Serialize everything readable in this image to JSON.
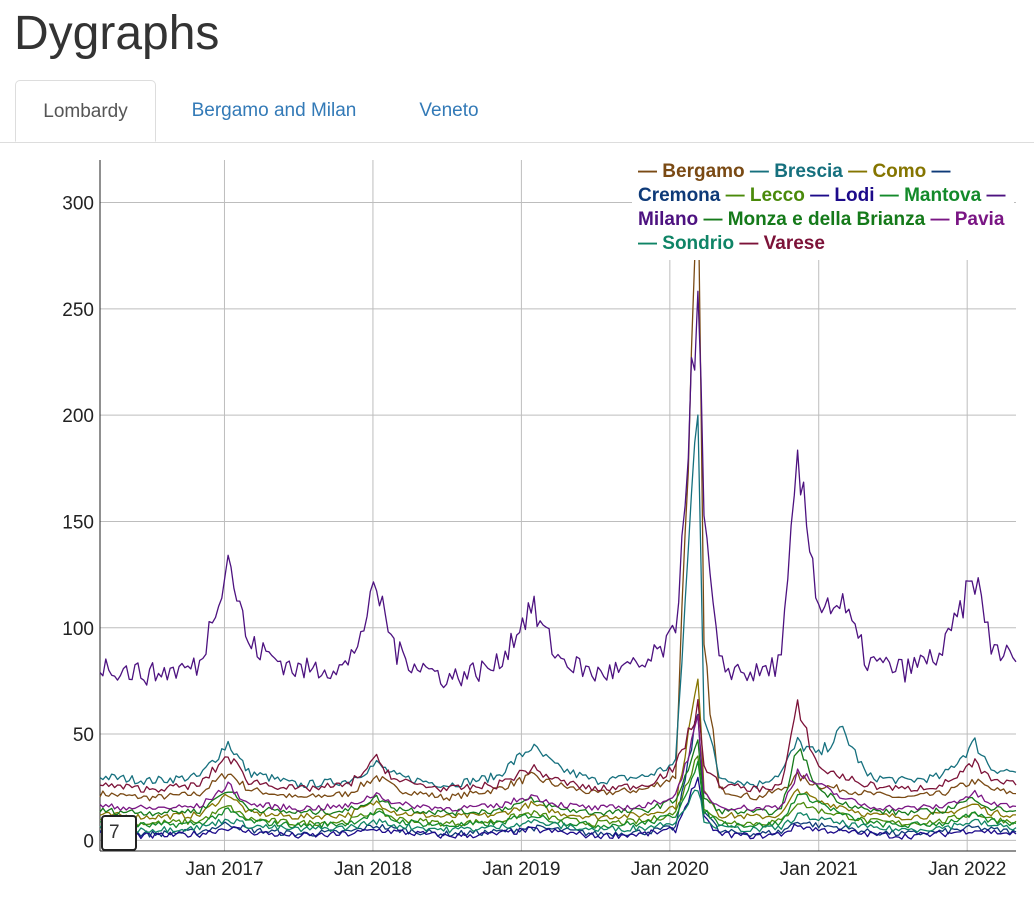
{
  "page": {
    "title": "Dygraphs"
  },
  "tabs": [
    {
      "label": "Lombardy",
      "active": true
    },
    {
      "label": "Bergamo and Milan",
      "active": false
    },
    {
      "label": "Veneto",
      "active": false
    }
  ],
  "roller": {
    "value": "7"
  },
  "chart_data": {
    "type": "line",
    "title": "",
    "xlabel": "",
    "ylabel": "",
    "x_ticks": [
      "Jan 2017",
      "Jan 2018",
      "Jan 2019",
      "Jan 2020",
      "Jan 2021",
      "Jan 2022"
    ],
    "y_ticks": [
      0,
      50,
      100,
      150,
      200,
      250,
      300
    ],
    "xlim": [
      "2016-03-01",
      "2022-05-01"
    ],
    "ylim": [
      -5,
      320
    ],
    "grid": true,
    "legend_position": "top-right",
    "x": [
      "2016-03-01",
      "2016-07-01",
      "2016-11-01",
      "2017-01-10",
      "2017-03-01",
      "2017-07-01",
      "2017-11-01",
      "2018-01-10",
      "2018-03-01",
      "2018-07-01",
      "2018-11-01",
      "2019-01-25",
      "2019-04-01",
      "2019-07-01",
      "2019-11-01",
      "2020-01-15",
      "2020-03-10",
      "2020-03-25",
      "2020-05-01",
      "2020-08-01",
      "2020-10-01",
      "2020-11-10",
      "2021-01-01",
      "2021-03-01",
      "2021-05-01",
      "2021-08-01",
      "2021-11-01",
      "2022-01-20",
      "2022-03-01",
      "2022-05-01"
    ],
    "series": [
      {
        "name": "Bergamo",
        "color": "#7a4a14",
        "values": [
          22,
          20,
          22,
          32,
          24,
          20,
          22,
          30,
          24,
          20,
          24,
          30,
          26,
          22,
          24,
          30,
          300,
          90,
          24,
          20,
          24,
          30,
          26,
          24,
          22,
          20,
          22,
          28,
          24,
          22
        ]
      },
      {
        "name": "Brescia",
        "color": "#16707e",
        "values": [
          30,
          28,
          30,
          46,
          32,
          26,
          28,
          36,
          30,
          26,
          30,
          44,
          34,
          28,
          30,
          36,
          210,
          60,
          30,
          26,
          32,
          46,
          40,
          52,
          30,
          28,
          30,
          46,
          34,
          32
        ]
      },
      {
        "name": "Como",
        "color": "#857500",
        "values": [
          12,
          11,
          12,
          22,
          13,
          11,
          12,
          18,
          13,
          11,
          12,
          17,
          13,
          11,
          12,
          16,
          75,
          25,
          12,
          11,
          12,
          24,
          18,
          16,
          12,
          11,
          12,
          17,
          13,
          12
        ]
      },
      {
        "name": "Cremona",
        "color": "#0e3a78",
        "values": [
          4,
          3,
          4,
          8,
          5,
          3,
          4,
          7,
          5,
          3,
          4,
          6,
          5,
          3,
          4,
          6,
          60,
          15,
          4,
          3,
          4,
          9,
          7,
          6,
          4,
          3,
          4,
          6,
          5,
          4
        ]
      },
      {
        "name": "Lecco",
        "color": "#4a8a0a",
        "values": [
          9,
          8,
          9,
          16,
          10,
          8,
          9,
          14,
          10,
          8,
          9,
          13,
          10,
          8,
          9,
          13,
          40,
          16,
          9,
          8,
          9,
          18,
          14,
          12,
          9,
          8,
          9,
          13,
          10,
          9
        ]
      },
      {
        "name": "Lodi",
        "color": "#1c0a8a",
        "values": [
          3,
          2,
          3,
          6,
          4,
          2,
          3,
          5,
          4,
          2,
          3,
          5,
          4,
          2,
          3,
          5,
          30,
          10,
          3,
          2,
          3,
          7,
          5,
          4,
          3,
          2,
          3,
          5,
          4,
          3
        ]
      },
      {
        "name": "Mantova",
        "color": "#138a2a",
        "values": [
          8,
          7,
          8,
          14,
          9,
          7,
          8,
          13,
          9,
          7,
          8,
          12,
          9,
          7,
          8,
          12,
          35,
          14,
          8,
          7,
          8,
          22,
          18,
          12,
          8,
          7,
          8,
          12,
          9,
          8
        ]
      },
      {
        "name": "Milano",
        "color": "#4d1280",
        "values": [
          82,
          78,
          82,
          134,
          92,
          80,
          82,
          118,
          88,
          76,
          82,
          110,
          86,
          78,
          82,
          96,
          260,
          150,
          82,
          78,
          84,
          176,
          112,
          110,
          84,
          80,
          88,
          124,
          92,
          84
        ]
      },
      {
        "name": "Monza e della Brianza",
        "color": "#157a1a",
        "values": [
          14,
          13,
          14,
          24,
          15,
          13,
          14,
          20,
          15,
          13,
          14,
          19,
          15,
          13,
          14,
          19,
          45,
          20,
          14,
          13,
          14,
          44,
          24,
          18,
          14,
          13,
          14,
          20,
          15,
          14
        ]
      },
      {
        "name": "Pavia",
        "color": "#7a1684",
        "values": [
          16,
          15,
          16,
          26,
          17,
          15,
          16,
          22,
          17,
          15,
          16,
          21,
          17,
          15,
          16,
          21,
          55,
          22,
          16,
          15,
          16,
          32,
          26,
          20,
          16,
          15,
          16,
          22,
          17,
          16
        ]
      },
      {
        "name": "Sondrio",
        "color": "#0f8466",
        "values": [
          6,
          5,
          6,
          10,
          7,
          5,
          6,
          9,
          7,
          5,
          6,
          9,
          7,
          5,
          6,
          9,
          25,
          10,
          6,
          5,
          6,
          12,
          10,
          8,
          6,
          5,
          6,
          9,
          7,
          6
        ]
      },
      {
        "name": "Varese",
        "color": "#7c1238",
        "values": [
          26,
          24,
          26,
          40,
          28,
          24,
          26,
          38,
          28,
          24,
          26,
          34,
          28,
          24,
          26,
          34,
          62,
          36,
          26,
          24,
          26,
          62,
          34,
          30,
          26,
          24,
          26,
          36,
          28,
          26
        ]
      }
    ]
  }
}
